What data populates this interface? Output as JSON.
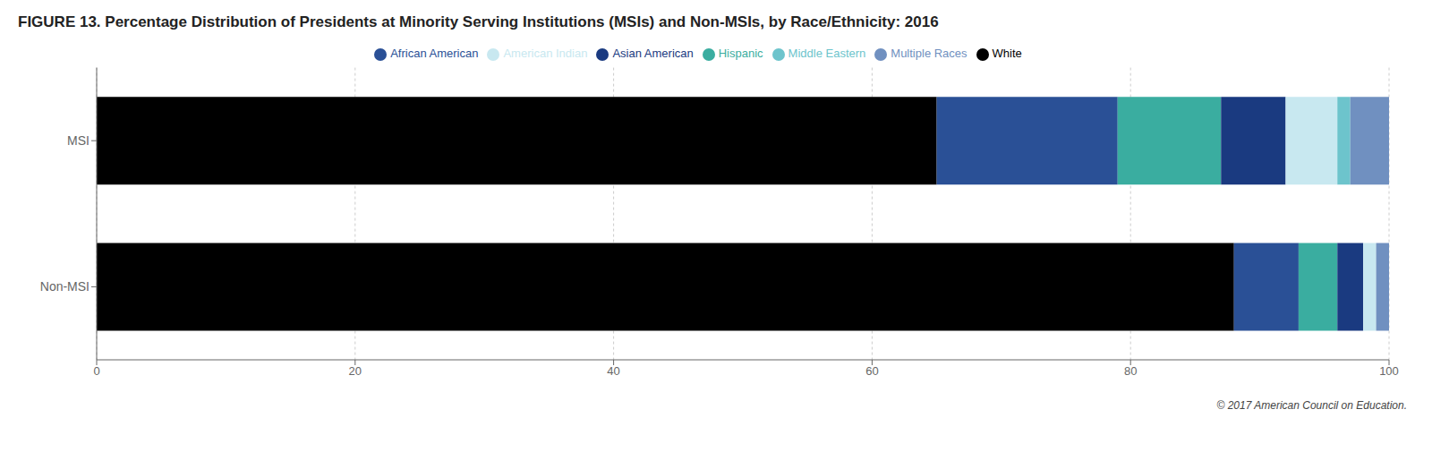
{
  "chart_data": {
    "type": "bar",
    "orientation": "horizontal",
    "stacked": true,
    "title": "FIGURE 13. Percentage Distribution of Presidents at Minority Serving Institutions (MSIs) and Non-MSIs, by Race/Ethnicity: 2016",
    "categories": [
      "MSI",
      "Non-MSI"
    ],
    "series": [
      {
        "name": "White",
        "color": "#000000",
        "values": [
          65,
          88
        ]
      },
      {
        "name": "African American",
        "color": "#2a5096",
        "values": [
          14,
          5
        ]
      },
      {
        "name": "Hispanic",
        "color": "#3aada0",
        "values": [
          8,
          3
        ]
      },
      {
        "name": "Asian American",
        "color": "#1a3a80",
        "values": [
          5,
          2
        ]
      },
      {
        "name": "American Indian",
        "color": "#c8e8f0",
        "values": [
          4,
          1
        ]
      },
      {
        "name": "Middle Eastern",
        "color": "#6dc4cc",
        "values": [
          1,
          0
        ]
      },
      {
        "name": "Multiple Races",
        "color": "#7090c0",
        "values": [
          3,
          1
        ]
      }
    ],
    "xlim": [
      0,
      100
    ],
    "xticks": [
      0,
      20,
      40,
      60,
      80,
      100
    ],
    "grid": true,
    "legend": "top",
    "annotations": [
      "© 2017 American Council on Education."
    ]
  }
}
